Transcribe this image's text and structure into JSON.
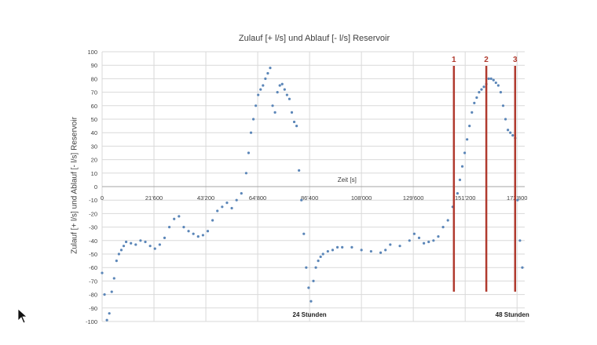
{
  "chart_data": {
    "type": "scatter",
    "title": "Zulauf [+ l/s] und Ablauf [- l/s] Reservoir",
    "ylabel": "Zulauf [+ l/s] und Ablauf [- l/s] Reservoir",
    "xlabel": "Zeit [s]",
    "xlim": [
      0,
      176000
    ],
    "ylim": [
      -100,
      100
    ],
    "grid": true,
    "y_ticks": [
      100,
      90,
      80,
      70,
      60,
      50,
      40,
      30,
      20,
      10,
      0,
      -10,
      -20,
      -30,
      -40,
      -50,
      -60,
      -70,
      -80,
      -90,
      -100
    ],
    "x_ticks": [
      {
        "value": 0,
        "label": "0"
      },
      {
        "value": 21600,
        "label": "21'600"
      },
      {
        "value": 43200,
        "label": "43'200"
      },
      {
        "value": 64800,
        "label": "64'800"
      },
      {
        "value": 86400,
        "label": "86'400"
      },
      {
        "value": 108000,
        "label": "108'000"
      },
      {
        "value": 129600,
        "label": "129'600"
      },
      {
        "value": 151200,
        "label": "151'200"
      },
      {
        "value": 172800,
        "label": "172'800"
      }
    ],
    "annotations": [
      {
        "label": "24 Stunden",
        "x": 86400
      },
      {
        "label": "48 Stunden",
        "x": 172800
      }
    ],
    "markers": [
      {
        "label": "1",
        "x": 146500,
        "color": "#b03a2e"
      },
      {
        "label": "2",
        "x": 160000,
        "color": "#b03a2e"
      },
      {
        "label": "3",
        "x": 172000,
        "color": "#b03a2e"
      }
    ],
    "point_color": "#5b86b8",
    "series": [
      {
        "x": [
          0,
          1000,
          2000,
          3000,
          4000,
          5000,
          6000,
          7000,
          8000,
          9000,
          10000,
          12000,
          14000,
          16000,
          18000,
          20000,
          22000,
          24000,
          26000,
          28000,
          30000,
          32000,
          34000,
          36000,
          38000,
          40000,
          42000,
          44000,
          46000,
          48000,
          50000,
          52000,
          54000,
          56000,
          58000,
          60000,
          61000,
          62000,
          63000,
          64000,
          65000,
          66000,
          67000,
          68000,
          69000,
          70000,
          71000,
          72000,
          73000,
          74000,
          75000,
          76000,
          77000,
          78000,
          79000,
          80000,
          81000,
          82000,
          83000,
          84000,
          85000,
          86000,
          87000,
          88000,
          89000,
          90000,
          91000,
          92000,
          94000,
          96000,
          98000,
          100000,
          104000,
          108000,
          112000,
          116000,
          118000,
          120000,
          124000,
          128000,
          130000,
          132000,
          134000,
          136000,
          138000,
          140000,
          142000,
          144000,
          146000,
          148000,
          149000,
          150000,
          151000,
          152000,
          153000,
          154000,
          155000,
          156000,
          157000,
          158000,
          159000,
          160000,
          161000,
          162000,
          163000,
          164000,
          165000,
          166000,
          167000,
          168000,
          169000,
          170000,
          171000,
          172000,
          173000,
          174000,
          175000
        ],
        "y": [
          -64,
          -80,
          -99,
          -94,
          -78,
          -68,
          -55,
          -50,
          -47,
          -44,
          -41,
          -42,
          -43,
          -40,
          -41,
          -44,
          -46,
          -43,
          -38,
          -30,
          -24,
          -22,
          -30,
          -33,
          -35,
          -37,
          -36,
          -33,
          -25,
          -18,
          -15,
          -12,
          -16,
          -10,
          -5,
          10,
          25,
          40,
          50,
          60,
          68,
          72,
          75,
          80,
          84,
          88,
          60,
          55,
          70,
          75,
          76,
          72,
          68,
          65,
          55,
          48,
          45,
          12,
          -10,
          -35,
          -60,
          -75,
          -85,
          -70,
          -60,
          -55,
          -52,
          -50,
          -48,
          -47,
          -45,
          -45,
          -45,
          -47,
          -48,
          -49,
          -47,
          -43,
          -44,
          -40,
          -35,
          -38,
          -42,
          -41,
          -40,
          -37,
          -30,
          -25,
          -15,
          -5,
          5,
          15,
          25,
          35,
          45,
          55,
          62,
          66,
          70,
          72,
          74,
          76,
          80,
          80,
          79,
          77,
          75,
          70,
          60,
          50,
          42,
          40,
          38,
          36,
          -10,
          -40,
          -60
        ]
      }
    ]
  }
}
